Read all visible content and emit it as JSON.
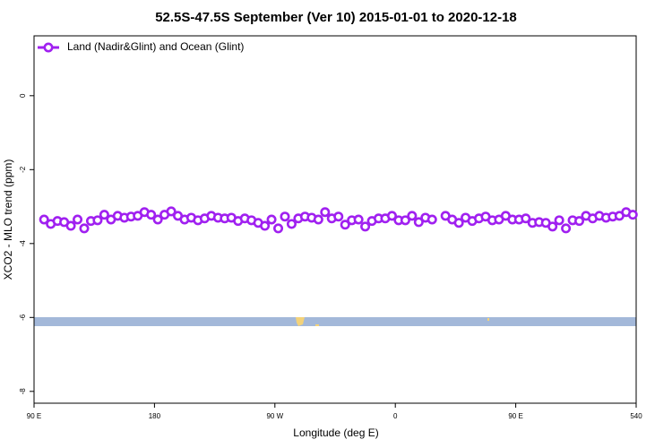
{
  "chart_data": {
    "type": "scatter",
    "title": "52.5S-47.5S September (Ver 10)   2015-01-01 to 2020-12-18",
    "xlabel": "Longitude (deg E)",
    "ylabel": "XCO2 - MLO trend (ppm)",
    "xlim": [
      90,
      540
    ],
    "ylim": [
      -8.32,
      1.62
    ],
    "xticks": [
      {
        "value": 90,
        "label": "90 E"
      },
      180,
      {
        "value": 270,
        "label": "90 W"
      },
      {
        "value": 360,
        "label": "0"
      },
      {
        "value": 450,
        "label": "90 E"
      },
      540
    ],
    "yticks": [
      0,
      -2,
      -4,
      -6,
      -8
    ],
    "series": [
      {
        "name": "Land (Nadir&Glint) and Ocean (Glint)",
        "color": "#a020f0",
        "x": [
          97.5,
          102.5,
          107.5,
          112.5,
          117.5,
          122.5,
          127.5,
          132.5,
          137.5,
          142.5,
          147.5,
          152.5,
          157.5,
          162.5,
          167.5,
          172.5,
          177.5,
          182.5,
          187.5,
          192.5,
          197.5,
          202.5,
          207.5,
          212.5,
          217.5,
          222.5,
          227.5,
          232.5,
          237.5,
          242.5,
          247.5,
          252.5,
          257.5,
          262.5,
          267.5,
          272.5,
          277.5,
          282.5,
          287.5,
          292.5,
          297.5,
          302.5,
          307.5,
          312.5,
          317.5,
          322.5,
          327.5,
          332.5,
          337.5,
          342.5,
          347.5,
          352.5,
          357.5,
          362.5,
          367.5,
          372.5,
          377.5,
          382.5,
          387.5,
          392.5,
          397.5,
          402.5,
          407.5,
          412.5,
          417.5,
          422.5,
          427.5,
          432.5,
          437.5,
          442.5,
          447.5,
          452.5,
          457.5,
          462.5,
          467.5,
          472.5,
          477.5,
          482.5,
          487.5,
          492.5,
          497.5,
          502.5,
          507.5,
          512.5,
          517.5,
          522.5,
          527.5,
          532.5,
          537.5
        ],
        "values": [
          -3.35,
          -3.47,
          -3.39,
          -3.42,
          -3.52,
          -3.35,
          -3.59,
          -3.39,
          -3.37,
          -3.22,
          -3.35,
          -3.25,
          -3.3,
          -3.27,
          -3.25,
          -3.15,
          -3.22,
          -3.35,
          -3.22,
          -3.13,
          -3.25,
          -3.35,
          -3.3,
          -3.37,
          -3.32,
          -3.25,
          -3.3,
          -3.32,
          -3.3,
          -3.39,
          -3.32,
          -3.37,
          -3.44,
          -3.52,
          -3.35,
          -3.59,
          -3.27,
          -3.47,
          -3.32,
          -3.27,
          -3.3,
          -3.35,
          -3.15,
          -3.32,
          -3.27,
          -3.49,
          -3.37,
          -3.35,
          -3.54,
          -3.39,
          -3.32,
          -3.32,
          -3.25,
          -3.37,
          -3.37,
          -3.25,
          -3.42,
          -3.3,
          -3.35,
          null,
          -3.25,
          -3.35,
          -3.44,
          -3.3,
          -3.39,
          -3.32,
          -3.27,
          -3.37,
          -3.35,
          -3.25,
          -3.35,
          -3.35,
          -3.32,
          -3.44,
          -3.42,
          -3.44,
          -3.54,
          -3.37,
          -3.59,
          -3.37,
          -3.39,
          -3.25,
          -3.32,
          -3.25,
          -3.3,
          -3.27,
          -3.25,
          -3.15,
          -3.22
        ]
      }
    ]
  }
}
